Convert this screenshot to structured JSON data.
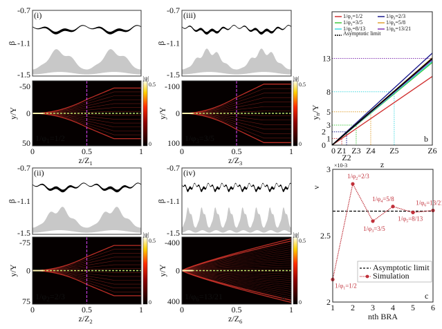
{
  "colors": {
    "band": "#000000",
    "gap": "#c8c8c8",
    "beam": "#d0332a",
    "center_dash": "#b8e06a",
    "mid_dash": "#c03cd8"
  },
  "beta_axis": {
    "label": "β",
    "ticks": [
      "-0.7",
      "-1.1",
      "-1.5"
    ]
  },
  "colorbar": {
    "label": "|ψ|",
    "max": "0.5",
    "min": "0"
  },
  "heat_axis_label": "y/Y",
  "x_ticks": [
    "0",
    "0.5",
    "1"
  ],
  "panels": [
    {
      "id": "i",
      "tag": "(i)",
      "ratio": {
        "pre": "1/φ",
        "sub": "1",
        "post": "=1/2"
      },
      "yticks": [
        "-50",
        "0",
        "50"
      ],
      "xlabel": {
        "pre": "z/Z",
        "sub": "1"
      },
      "mid_line": true
    },
    {
      "id": "iii",
      "tag": "(iii)",
      "ratio": {
        "pre": "1/φ",
        "sub": "3",
        "post": "=3/5"
      },
      "yticks": [
        "-100",
        "0",
        "100"
      ],
      "xlabel": {
        "pre": "z/Z",
        "sub": "3"
      },
      "mid_line": true
    },
    {
      "id": "ii",
      "tag": "(ii)",
      "ratio": {
        "pre": "1/φ",
        "sub": "2",
        "post": "=2/3"
      },
      "yticks": [
        "-75",
        "0",
        "75"
      ],
      "xlabel": {
        "pre": "z/Z",
        "sub": "2"
      },
      "mid_line": true
    },
    {
      "id": "iv",
      "tag": "(iv)",
      "ratio": {
        "pre": "1/φ",
        "sub": "6",
        "post": "=13/21"
      },
      "yticks": [
        "-400",
        "0",
        "400"
      ],
      "xlabel": {
        "pre": "z/Z",
        "sub": "6"
      },
      "mid_line": false,
      "letter": "a"
    }
  ],
  "chart_data": [
    {
      "type": "line",
      "panel": "b",
      "letter": "b",
      "xlabel": "z",
      "ylabel": {
        "pre": "y",
        "sub": "n",
        "post": "/Y"
      },
      "x_tick_labels": [
        "0",
        "Z1",
        "Z2",
        "Z3",
        "Z4",
        "Z5",
        "Z6"
      ],
      "y_tick_labels": [
        "0",
        "1",
        "2",
        "3",
        "5",
        "8",
        "13"
      ],
      "ylim": [
        0,
        20
      ],
      "legend_position": "top",
      "series": [
        {
          "name": {
            "pre": "1/φ",
            "sub": "1",
            "post": "=1/2"
          },
          "color": "#d03030",
          "value_at_Z6": 10.3
        },
        {
          "name": {
            "pre": "1/φ",
            "sub": "2",
            "post": "=2/3"
          },
          "color": "#1a1a8c",
          "value_at_Z6": 13.8
        },
        {
          "name": {
            "pre": "1/φ",
            "sub": "3",
            "post": "=3/5"
          },
          "color": "#3cc83c",
          "value_at_Z6": 12.4
        },
        {
          "name": {
            "pre": "1/φ",
            "sub": "4",
            "post": "=5/8"
          },
          "color": "#e0a030",
          "value_at_Z6": 13.1
        },
        {
          "name": {
            "pre": "1/φ",
            "sub": "5",
            "post": "=8/13"
          },
          "color": "#40d8e0",
          "value_at_Z6": 12.6
        },
        {
          "name": {
            "pre": "1/φ",
            "sub": "6",
            "post": "=13/21"
          },
          "color": "#8030b0",
          "value_at_Z6": 12.8
        },
        {
          "name": {
            "pre": "",
            "sub": "",
            "post": "Asymptotic limit"
          },
          "color": "#000000",
          "value_at_Z6": 13,
          "dashed": true
        }
      ],
      "guides": [
        {
          "level": 1,
          "at": "Z1",
          "color": "#d03030"
        },
        {
          "level": 2,
          "at": "Z2",
          "color": "#1a1a8c"
        },
        {
          "level": 3,
          "at": "Z3",
          "color": "#3cc83c"
        },
        {
          "level": 5,
          "at": "Z4",
          "color": "#e0a030"
        },
        {
          "level": 8,
          "at": "Z5",
          "color": "#40d8e0"
        },
        {
          "level": 13,
          "at": "Z6",
          "color": "#8030b0"
        }
      ]
    },
    {
      "type": "line",
      "panel": "c",
      "letter": "c",
      "xlabel": "nth BRA",
      "ylabel": "ν",
      "y_multiplier": "×10-3",
      "x": [
        1,
        2,
        3,
        4,
        5,
        6
      ],
      "xlim": [
        1,
        6
      ],
      "ylim": [
        2.0,
        3.0
      ],
      "x_tick_labels": [
        "1",
        "2",
        "3",
        "4",
        "5",
        "6"
      ],
      "y_tick_labels": [
        "2",
        "2.5",
        "3"
      ],
      "legend_position": "lower-right",
      "series": [
        {
          "name": "Simulation",
          "color": "#c0303a",
          "values": [
            2.17,
            2.89,
            2.61,
            2.72,
            2.675,
            2.69
          ],
          "point_labels": [
            {
              "pre": "1/φ",
              "sub": "1",
              "post": "=1/2"
            },
            {
              "pre": "1/φ",
              "sub": "2",
              "post": "=2/3"
            },
            {
              "pre": "1/φ",
              "sub": "3",
              "post": "=3/5"
            },
            {
              "pre": "1/φ",
              "sub": "4",
              "post": "=5/8"
            },
            {
              "pre": "1/φ",
              "sub": "5",
              "post": "=8/13"
            },
            {
              "pre": "1/φ",
              "sub": "6",
              "post": "=13/21"
            }
          ]
        },
        {
          "name": "Asymptotic limit",
          "color": "#000000",
          "constant": 2.685,
          "dashed": true
        }
      ]
    }
  ]
}
